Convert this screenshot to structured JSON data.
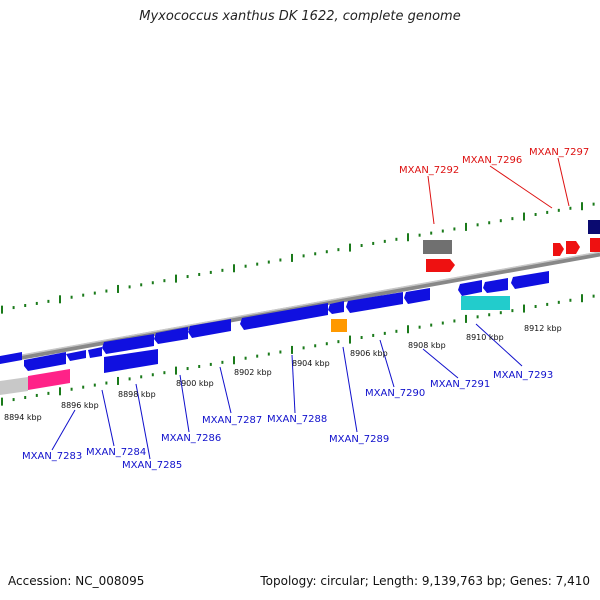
{
  "title": "Myxococcus xanthus DK 1622, complete genome",
  "footer": {
    "accession": "Accession: NC_008095",
    "summary": "Topology: circular; Length: 9,139,763 bp; Genes: 7,410"
  },
  "colors": {
    "forward_gene": "#1010e0",
    "reverse_gene": "#1010e0",
    "rna_highlight": "#ee1111",
    "pseudo_gray": "#707070",
    "tick_green": "#1a7a1a",
    "label_blue": "#1010cc",
    "label_red": "#dd1111",
    "cyan_gene": "#22cccc",
    "orange_gene": "#ff9900",
    "magenta_gene": "#ff2288",
    "navy_gene": "#0a0a70"
  },
  "scale_labels": [
    "8894 kbp",
    "8896 kbp",
    "8898 kbp",
    "8900 kbp",
    "8902 kbp",
    "8904 kbp",
    "8906 kbp",
    "8908 kbp",
    "8910 kbp",
    "8912 kbp"
  ],
  "gene_labels": [
    {
      "text": "MXAN_7283",
      "color": "blue"
    },
    {
      "text": "MXAN_7284",
      "color": "blue"
    },
    {
      "text": "MXAN_7285",
      "color": "blue"
    },
    {
      "text": "MXAN_7286",
      "color": "blue"
    },
    {
      "text": "MXAN_7287",
      "color": "blue"
    },
    {
      "text": "MXAN_7288",
      "color": "blue"
    },
    {
      "text": "MXAN_7289",
      "color": "blue"
    },
    {
      "text": "MXAN_7290",
      "color": "blue"
    },
    {
      "text": "MXAN_7291",
      "color": "blue"
    },
    {
      "text": "MXAN_7293",
      "color": "blue"
    },
    {
      "text": "MXAN_7292",
      "color": "red"
    },
    {
      "text": "MXAN_7296",
      "color": "red"
    },
    {
      "text": "MXAN_7297",
      "color": "red"
    }
  ]
}
